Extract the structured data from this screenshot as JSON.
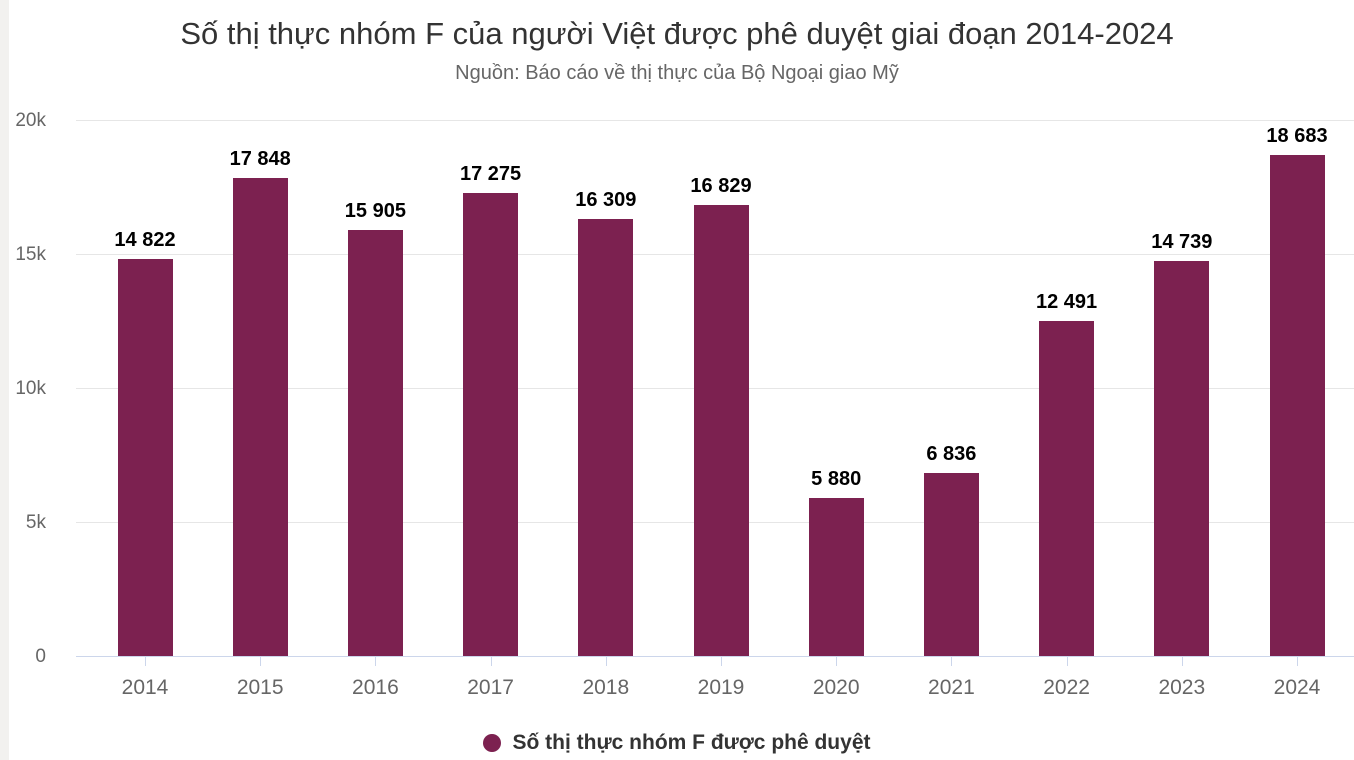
{
  "chart_data": {
    "type": "bar",
    "title": "Số thị thực nhóm F của người Việt được phê duyệt giai đoạn 2014-2024",
    "subtitle": "Nguồn: Báo cáo về thị thực của Bộ Ngoại giao Mỹ",
    "categories": [
      "2014",
      "2015",
      "2016",
      "2017",
      "2018",
      "2019",
      "2020",
      "2021",
      "2022",
      "2023",
      "2024"
    ],
    "series": [
      {
        "name": "Số thị thực nhóm F được phê duyệt",
        "values": [
          14822,
          17848,
          15905,
          17275,
          16309,
          16829,
          5880,
          6836,
          12491,
          14739,
          18683
        ],
        "value_labels": [
          "14 822",
          "17 848",
          "15 905",
          "17 275",
          "16 309",
          "16 829",
          "5 880",
          "6 836",
          "12 491",
          "14 739",
          "18 683"
        ]
      }
    ],
    "xlabel": "",
    "ylabel": "",
    "ylim": [
      0,
      20000
    ],
    "yticks": [
      {
        "value": 0,
        "label": "0"
      },
      {
        "value": 5000,
        "label": "5k"
      },
      {
        "value": 10000,
        "label": "10k"
      },
      {
        "value": 15000,
        "label": "15k"
      },
      {
        "value": 20000,
        "label": "20k"
      }
    ],
    "grid": true,
    "legend_position": "bottom",
    "colors": {
      "bar": "#7c2150",
      "axis_line": "#ccd6eb",
      "gridline": "#e6e6e6",
      "axis_label": "#666666",
      "data_label": "#000000",
      "title": "#333333",
      "subtitle": "#666666"
    }
  }
}
